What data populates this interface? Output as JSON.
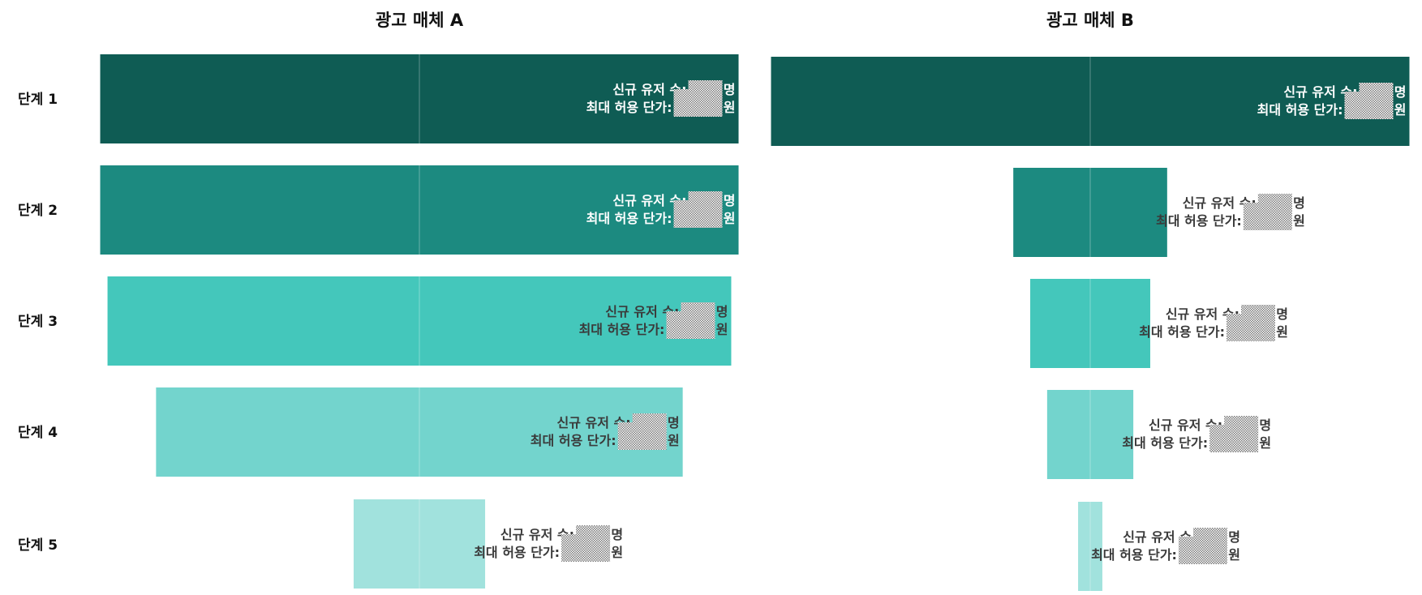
{
  "chart_data": [
    {
      "type": "funnel",
      "title": "광고 매체 A",
      "categories": [
        "단계 1",
        "단계 2",
        "단계 3",
        "단계 4",
        "단계 5"
      ],
      "values": [
        100,
        100,
        97.7,
        82.5,
        20.6
      ],
      "data_labels": [
        {
          "users": "신규 유저 수:",
          "users_unit": "명",
          "price": "최대 허용 단가:",
          "price_unit": "원"
        },
        {
          "users": "신규 유저 수:",
          "users_unit": "명",
          "price": "최대 허용 단가:",
          "price_unit": "원"
        },
        {
          "users": "신규 유저 수:",
          "users_unit": "명",
          "price": "최대 허용 단가:",
          "price_unit": "원"
        },
        {
          "users": "신규 유저 수:",
          "users_unit": "명",
          "price": "최대 허용 단가:",
          "price_unit": "원"
        },
        {
          "users": "신규 유저 수:",
          "users_unit": "명",
          "price": "최대 허용 단가:",
          "price_unit": "원"
        }
      ]
    },
    {
      "type": "funnel",
      "title": "광고 매체 B",
      "categories": [
        "단계 1",
        "단계 2",
        "단계 3",
        "단계 4",
        "단계 5"
      ],
      "values": [
        100,
        24.1,
        18.8,
        13.5,
        3.8
      ],
      "data_labels": [
        {
          "users": "신규 유저 수:",
          "users_unit": "명",
          "price": "최대 허용 단가:",
          "price_unit": "원"
        },
        {
          "users": "신규 유저 수:",
          "users_unit": "명",
          "price": "최대 허용 단가:",
          "price_unit": "원"
        },
        {
          "users": "신규 유저 수:",
          "users_unit": "명",
          "price": "최대 허용 단가:",
          "price_unit": "원"
        },
        {
          "users": "신규 유저 수:",
          "users_unit": "명",
          "price": "최대 허용 단가:",
          "price_unit": "원"
        },
        {
          "users": "신규 유저 수",
          "users_unit": "명",
          "price": "최대 허용 단가:",
          "price_unit": "원"
        }
      ]
    }
  ],
  "colors": [
    "#0f5c54",
    "#1c8a80",
    "#44c7bb",
    "#73d4cd",
    "#a1e2dd"
  ],
  "label_colors": [
    "#ffffff",
    "#ffffff",
    "#3a3a3a",
    "#3a3a3a",
    "#3a3a3a"
  ],
  "redaction_pattern": "checkered-gray"
}
